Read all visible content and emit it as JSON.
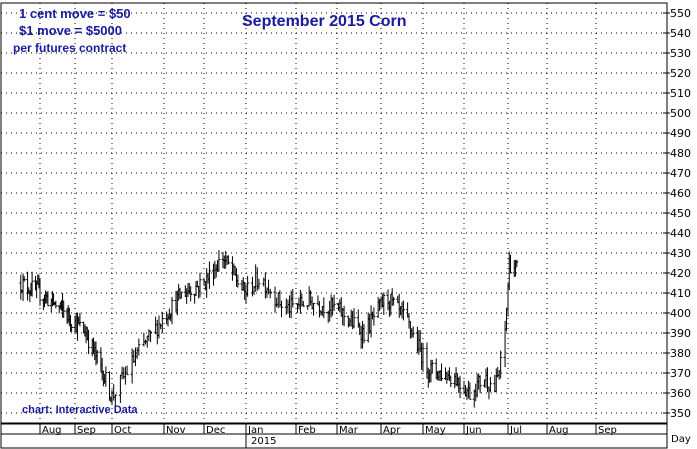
{
  "chart_data": {
    "type": "ohlc",
    "title": "September 2015 Corn",
    "annotations": [
      "1 cent move = $50",
      "$1 move = $5000",
      "per futures contract"
    ],
    "source": "chart: Interactive Data",
    "x_unit_label": "Day",
    "year_label": "2015",
    "ylim": [
      345,
      555
    ],
    "y_ticks": [
      350,
      360,
      370,
      380,
      390,
      400,
      410,
      420,
      430,
      440,
      450,
      460,
      470,
      480,
      490,
      500,
      510,
      520,
      530,
      540,
      550
    ],
    "x_months": [
      "Aug",
      "Sep",
      "Oct",
      "Nov",
      "Dec",
      "Jan",
      "Feb",
      "Mar",
      "Apr",
      "May",
      "Jun",
      "Jul",
      "Aug",
      "Sep"
    ],
    "grid": true,
    "bar_color": "#000000",
    "annotation_color": "#1a1aa0",
    "price_anchors": [
      {
        "date": "2014-07-15",
        "close": 415
      },
      {
        "date": "2014-08-01",
        "close": 410
      },
      {
        "date": "2014-08-20",
        "close": 402
      },
      {
        "date": "2014-09-10",
        "close": 390
      },
      {
        "date": "2014-09-25",
        "close": 368
      },
      {
        "date": "2014-10-01",
        "close": 358
      },
      {
        "date": "2014-10-15",
        "close": 378
      },
      {
        "date": "2014-11-01",
        "close": 398
      },
      {
        "date": "2014-11-15",
        "close": 410
      },
      {
        "date": "2014-12-01",
        "close": 415
      },
      {
        "date": "2014-12-15",
        "close": 428
      },
      {
        "date": "2014-12-31",
        "close": 410
      },
      {
        "date": "2015-01-10",
        "close": 418
      },
      {
        "date": "2015-01-25",
        "close": 402
      },
      {
        "date": "2015-02-10",
        "close": 406
      },
      {
        "date": "2015-03-01",
        "close": 402
      },
      {
        "date": "2015-03-20",
        "close": 390
      },
      {
        "date": "2015-04-05",
        "close": 408
      },
      {
        "date": "2015-04-20",
        "close": 395
      },
      {
        "date": "2015-05-05",
        "close": 372
      },
      {
        "date": "2015-05-25",
        "close": 368
      },
      {
        "date": "2015-06-05",
        "close": 360
      },
      {
        "date": "2015-06-15",
        "close": 368
      },
      {
        "date": "2015-06-22",
        "close": 362
      },
      {
        "date": "2015-06-28",
        "close": 380
      },
      {
        "date": "2015-07-02",
        "close": 425
      },
      {
        "date": "2015-07-08",
        "close": 422
      }
    ]
  }
}
